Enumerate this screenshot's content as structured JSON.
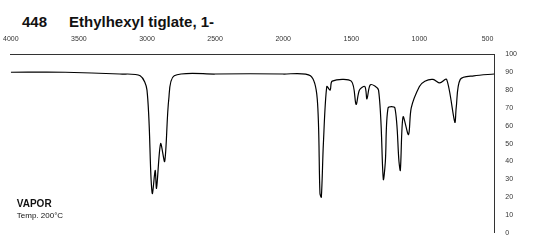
{
  "chart_data": {
    "type": "line",
    "title_number": "448",
    "title": "Ethylhexyl tiglate, 1-",
    "annotations": [
      "VAPOR",
      "Temp. 200°C"
    ],
    "color": "#000000",
    "grid": false,
    "x": [
      4000,
      3600,
      3200,
      3050,
      3000,
      2970,
      2960,
      2940,
      2930,
      2900,
      2870,
      2840,
      2800,
      2500,
      2000,
      1800,
      1750,
      1730,
      1720,
      1705,
      1680,
      1655,
      1640,
      1500,
      1465,
      1440,
      1400,
      1385,
      1360,
      1300,
      1265,
      1250,
      1230,
      1180,
      1150,
      1140,
      1120,
      1080,
      1060,
      1000,
      960,
      900,
      850,
      800,
      740,
      730,
      700,
      600,
      450
    ],
    "values": [
      90,
      90,
      89,
      88,
      80,
      30,
      22,
      35,
      25,
      50,
      40,
      75,
      88,
      89,
      89,
      88,
      75,
      22,
      20,
      50,
      82,
      80,
      85,
      85,
      72,
      80,
      82,
      75,
      83,
      80,
      30,
      40,
      70,
      70,
      40,
      35,
      65,
      55,
      70,
      82,
      85,
      86,
      84,
      86,
      62,
      70,
      86,
      88,
      89
    ],
    "xlim": [
      4000,
      450
    ],
    "xticks": [
      4000,
      3500,
      3000,
      2500,
      2000,
      1500,
      1000,
      500
    ],
    "ylim": [
      0,
      100
    ],
    "yticks": [
      0,
      10,
      20,
      30,
      40,
      50,
      60,
      70,
      80,
      90,
      100
    ]
  }
}
